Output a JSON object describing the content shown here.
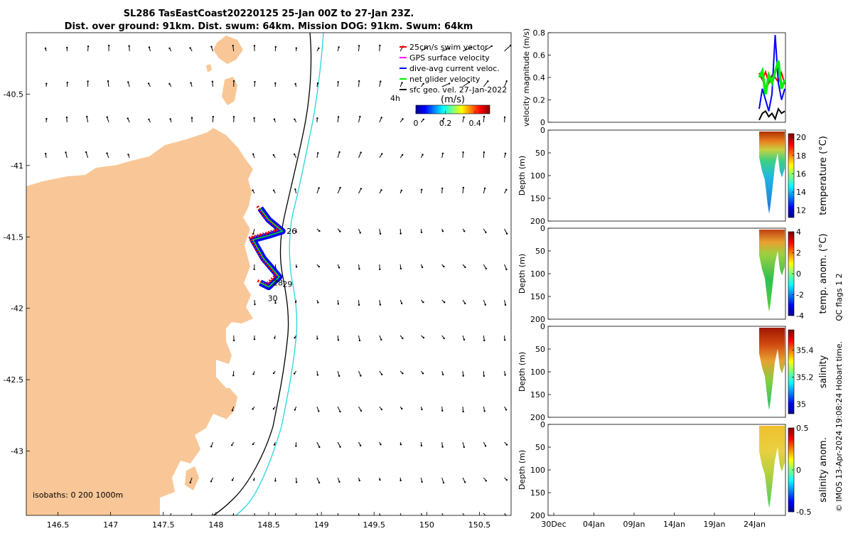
{
  "title_line1": "SL286 TasEastCoast20220125 25-Jan 00Z to 27-Jan 23Z.",
  "title_line2": "Dist. over ground: 91km. Dist. swum: 64km. Mission DOG: 91km. Swum: 64km",
  "colors": {
    "land": "#f9c797",
    "isobath_200": "#000000",
    "isobath_1000": "#26d4df",
    "swim": "#ff0000",
    "gps": "#ff00ff",
    "dive_avg": "#0000ff",
    "net": "#00ee00",
    "geo": "#000000"
  },
  "map": {
    "xlim": [
      146.2,
      150.8
    ],
    "ylim": [
      -43.45,
      -40.07
    ],
    "xticks": [
      "146.5",
      "147",
      "147.5",
      "148",
      "148.5",
      "149",
      "149.5",
      "150",
      "150.5"
    ],
    "yticks": [
      "-40.5",
      "-41",
      "-41.5",
      "-42",
      "-42.5",
      "-43"
    ],
    "isobaths_label": "isobaths: 0   200  1000m",
    "legend": [
      {
        "label": "25cm/s swim vector",
        "color": "#ff0000"
      },
      {
        "label": "GPS surface velocity",
        "color": "#ff00ff"
      },
      {
        "label": "dive-avg current veloc.",
        "color": "#0000ff"
      },
      {
        "label": "net glider velocity",
        "color": "#00ee00"
      },
      {
        "label": "sfc geo. vel. 27-Jan-2022",
        "color": "#000000"
      }
    ],
    "colorbar": {
      "label": "(m/s)",
      "ticks": [
        "0",
        "0.2",
        "0.4"
      ],
      "range": [
        0,
        0.5
      ],
      "scale_label": "4h"
    },
    "day_labels": [
      {
        "text": "26",
        "lon": 148.63,
        "lat": -41.46
      },
      {
        "text": "28",
        "lon": 148.5,
        "lat": -41.82
      },
      {
        "text": "29",
        "lon": 148.59,
        "lat": -41.83
      },
      {
        "text": "30",
        "lon": 148.45,
        "lat": -41.93
      }
    ]
  },
  "velocity_panel": {
    "ylabel": "velocity magnitude (m/s)",
    "yticks": [
      "0",
      "0.2",
      "0.4",
      "0.6",
      "0.8"
    ],
    "ylim": [
      0,
      0.8
    ]
  },
  "time_axis": {
    "ticks": [
      "30Dec",
      "04Jan",
      "09Jan",
      "14Jan",
      "19Jan",
      "24Jan"
    ]
  },
  "depth_panels": [
    {
      "ylabel": "Depth (m)",
      "yticks": [
        "0",
        "50",
        "100",
        "150",
        "200"
      ],
      "cbar_label": "temperature (°C)",
      "cbar_ticks": [
        "12",
        "14",
        "16",
        "18",
        "20"
      ],
      "cbar_range": [
        11.2,
        20.4
      ]
    },
    {
      "ylabel": "Depth (m)",
      "yticks": [
        "0",
        "50",
        "100",
        "150",
        "200"
      ],
      "cbar_label": "temp. anom. (°C)",
      "cbar_ticks": [
        "-4",
        "-2",
        "0",
        "2",
        "4"
      ],
      "cbar_range": [
        -4,
        4
      ]
    },
    {
      "ylabel": "Depth (m)",
      "yticks": [
        "0",
        "50",
        "100",
        "150",
        "200"
      ],
      "cbar_label": "salinity",
      "cbar_ticks": [
        "35",
        "35.2",
        "35.4"
      ],
      "cbar_range": [
        34.93,
        35.55
      ]
    },
    {
      "ylabel": "Depth (m)",
      "yticks": [
        "0",
        "50",
        "100",
        "150",
        "200"
      ],
      "cbar_label": "salinity anom.",
      "cbar_ticks": [
        "-0.5",
        "0",
        "0.5"
      ],
      "cbar_range": [
        -0.5,
        0.5
      ]
    }
  ],
  "side_note": "QC flags 1  2",
  "credit": "© IMOS 13-Apr-2024 19:08:24 Hobart time.",
  "chart_data": [
    {
      "type": "scatter",
      "title": "SL286 TasEastCoast20220125 25-Jan 00Z to 27-Jan 23Z.",
      "xlabel": "",
      "ylabel": "",
      "xlim": [
        146.2,
        150.8
      ],
      "ylim": [
        -43.45,
        -40.07
      ],
      "series": [
        {
          "name": "dive-avg current veloc.",
          "x": [
            148.42,
            148.5,
            148.63,
            148.5,
            148.35,
            148.45,
            148.6,
            148.5,
            148.42
          ],
          "y": [
            -41.3,
            -41.38,
            -41.46,
            -41.49,
            -41.52,
            -41.65,
            -41.78,
            -41.85,
            -41.82
          ]
        }
      ]
    },
    {
      "type": "line",
      "ylabel": "velocity magnitude (m/s)",
      "ylim": [
        0,
        0.8
      ],
      "series": [
        {
          "name": "25cm/s swim vector",
          "color": "#ff0000",
          "values": [
            0.44,
            0.38,
            0.45,
            0.35,
            0.42,
            0.4,
            0.36,
            0.44,
            0.34
          ]
        },
        {
          "name": "dive-avg current veloc.",
          "color": "#0000ff",
          "values": [
            0.12,
            0.3,
            0.2,
            0.1,
            0.25,
            0.78,
            0.35,
            0.2,
            0.3
          ]
        },
        {
          "name": "net glider velocity",
          "color": "#00ee00",
          "values": [
            0.4,
            0.46,
            0.25,
            0.42,
            0.35,
            0.45,
            0.55,
            0.3,
            0.38
          ]
        },
        {
          "name": "sfc geo. vel. 27-Jan-2022",
          "color": "#000000",
          "values": [
            0.02,
            0.08,
            0.1,
            0.05,
            0.08,
            0.03,
            0.12,
            0.08,
            0.1
          ]
        }
      ]
    }
  ]
}
